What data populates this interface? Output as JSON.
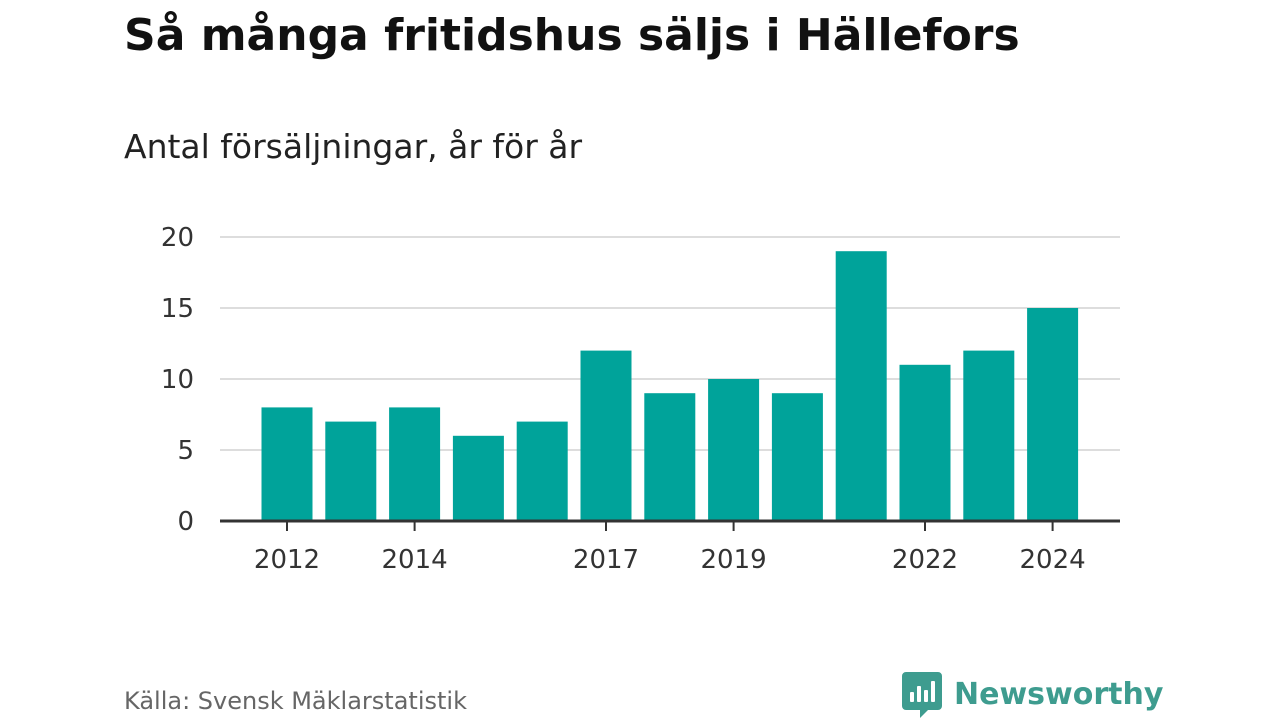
{
  "title": "Så många fritidshus säljs i Hällefors",
  "subtitle": "Antal försäljningar, år för år",
  "source": "Källa: Svensk Mäklarstatistik",
  "brand": {
    "name": "Newsworthy",
    "icon": "newsworthy-logo-icon",
    "color": "#3e9c8f"
  },
  "colors": {
    "bar": "#00a39a",
    "grid": "#dddddd",
    "axis": "#333333"
  },
  "chart_data": {
    "type": "bar",
    "categories": [
      "2012",
      "2013",
      "2014",
      "2015",
      "2016",
      "2017",
      "2018",
      "2019",
      "2020",
      "2021",
      "2022",
      "2023",
      "2024"
    ],
    "values": [
      8,
      7,
      8,
      6,
      7,
      12,
      9,
      10,
      9,
      19,
      11,
      12,
      15
    ],
    "x_tick_labels": [
      "2012",
      "2014",
      "2017",
      "2019",
      "2022",
      "2024"
    ],
    "y_ticks": [
      "0",
      "5",
      "10",
      "15",
      "20"
    ],
    "ylim": [
      0,
      20
    ],
    "grid": true,
    "legend": false
  }
}
